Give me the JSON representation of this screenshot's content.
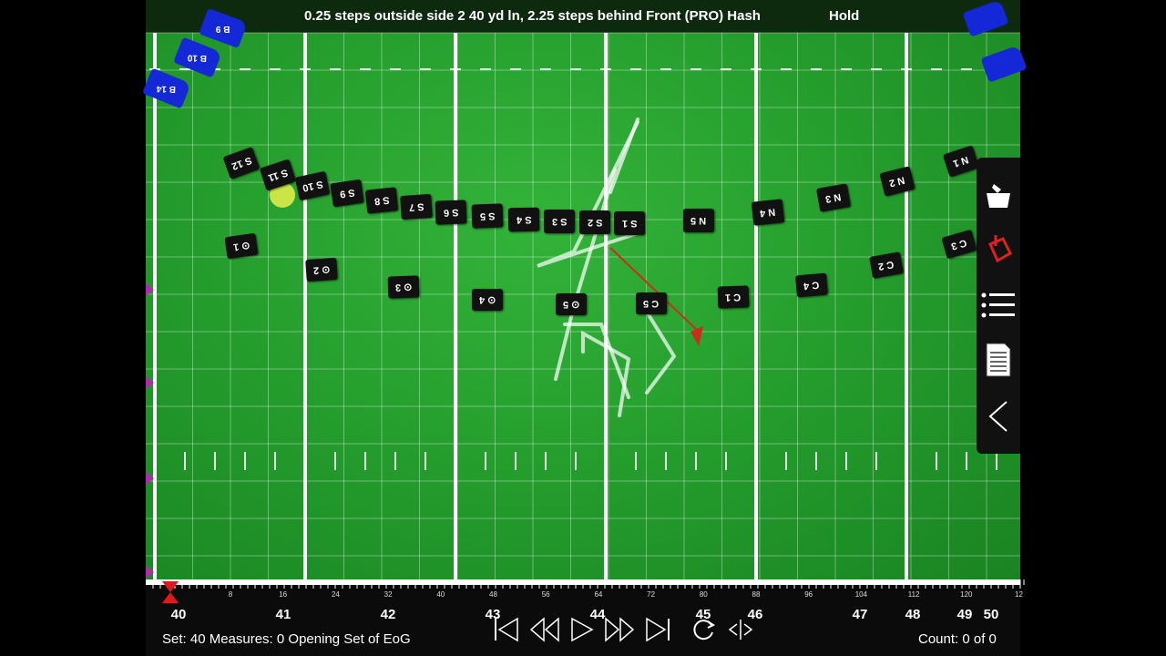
{
  "header": {
    "position_text": "0.25 steps outside side 2  40 yd ln, 2.25 steps behind Front (PRO) Hash",
    "mode_text": "Hold"
  },
  "colors": {
    "field": "#239a2b",
    "marcher": "#111111",
    "blue_section": "#1428d8",
    "path_red": "#cc2b1d",
    "highlight": "#e8f04a",
    "flag": "#b02ab0"
  },
  "marchers": {
    "s_row": [
      "S 12",
      "S 11",
      "S 10",
      "S 9",
      "S 8",
      "S 7",
      "S 6",
      "S 5",
      "S 4",
      "S 3",
      "S 2",
      "S 1"
    ],
    "n_row": [
      "N 5",
      "N 4",
      "N 3",
      "N 2",
      "N 1"
    ],
    "dot_row": [
      "⊙ 1",
      "⊙ 2",
      "⊙ 3",
      "⊙ 4",
      "⊙ 5"
    ],
    "c_row": [
      "C 5",
      "C 1",
      "C 4",
      "C 2",
      "C 3"
    ],
    "blue": [
      "B 9",
      "B 10",
      "B 14"
    ]
  },
  "toolbar": {
    "icons": [
      "basket-icon",
      "paint-bucket-icon",
      "list-icon",
      "document-icon",
      "collapse-icon"
    ]
  },
  "ruler": {
    "yard_labels": [
      "40",
      "41",
      "42",
      "43",
      "44",
      "45",
      "46",
      "47",
      "48",
      "49",
      "50"
    ],
    "count_labels": [
      "8",
      "16",
      "24",
      "32",
      "40",
      "48",
      "56",
      "64",
      "72",
      "80",
      "88",
      "96",
      "104",
      "112",
      "120",
      "12"
    ]
  },
  "footer": {
    "set_text": "Set: 40 Measures: 0 Opening Set of EoG",
    "count_text": "Count: 0 of 0"
  },
  "playback": {
    "controls": [
      "skip-start-icon",
      "rewind-icon",
      "play-icon",
      "fast-forward-icon",
      "skip-end-icon",
      "sync-icon",
      "expand-horizontal-icon"
    ]
  }
}
